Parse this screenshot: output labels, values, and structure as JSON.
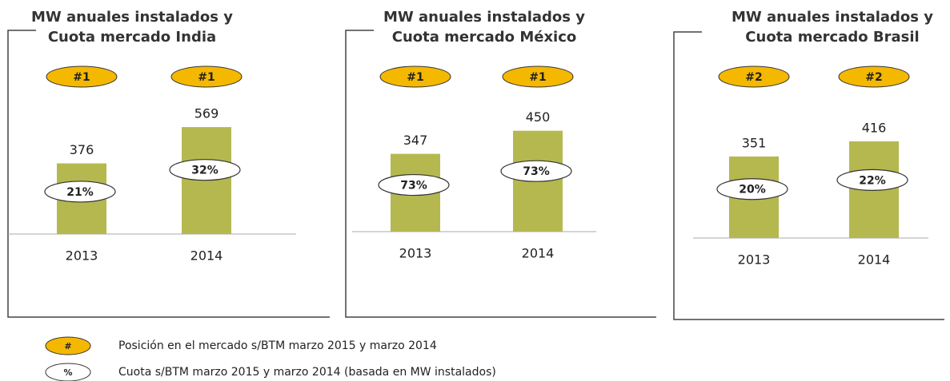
{
  "chart_data": [
    {
      "type": "bar",
      "title": [
        "MW anuales instalados y",
        "Cuota mercado India"
      ],
      "categories": [
        "2013",
        "2014"
      ],
      "values": [
        376,
        569
      ],
      "color": "#b5b84f",
      "ylim": [
        0,
        680
      ],
      "rank_labels": [
        "#1",
        "#1"
      ],
      "share_labels": [
        "21%",
        "32%"
      ]
    },
    {
      "type": "bar",
      "title": [
        "MW anuales instalados y",
        "Cuota mercado México"
      ],
      "categories": [
        "2013",
        "2014"
      ],
      "values": [
        347,
        450
      ],
      "color": "#b5b84f",
      "ylim": [
        0,
        570
      ],
      "rank_labels": [
        "#1",
        "#1"
      ],
      "share_labels": [
        "73%",
        "73%"
      ]
    },
    {
      "type": "bar",
      "title": [
        "MW anuales instalados y",
        "Cuota mercado Brasil"
      ],
      "categories": [
        "2013",
        "2014"
      ],
      "values": [
        351,
        416
      ],
      "color": "#b5b84f",
      "ylim": [
        0,
        550
      ],
      "rank_labels": [
        "#2",
        "#2"
      ],
      "share_labels": [
        "20%",
        "22%"
      ]
    }
  ],
  "legend": [
    {
      "symbol": "#",
      "text": "Posición en el mercado s/BTM marzo 2015 y marzo 2014"
    },
    {
      "symbol": "%",
      "text": "Cuota s/BTM marzo 2015 y marzo 2014 (basada en MW instalados)"
    }
  ]
}
